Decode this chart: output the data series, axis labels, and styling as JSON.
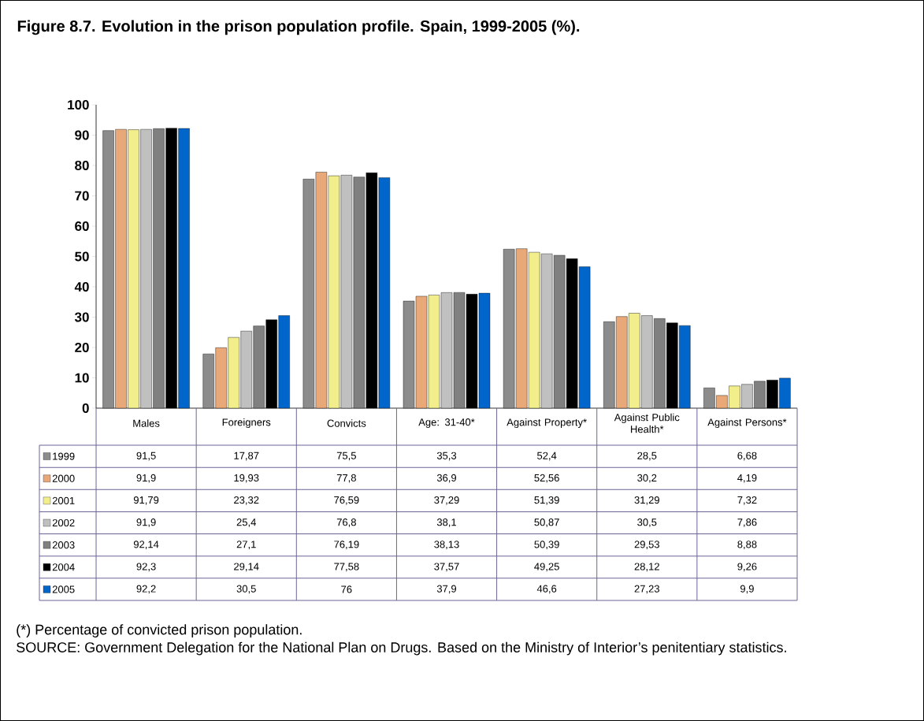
{
  "chart_data": {
    "type": "bar",
    "title": "Figure 8.7. Evolution in the prison population profile. Spain, 1999-2005 (%).",
    "categories": [
      "Males",
      "Foreigners",
      "Convicts",
      "Age: 31-40*",
      "Against Property*",
      "Against Public Health*",
      "Against Persons*"
    ],
    "series": [
      {
        "name": "1999",
        "color": "#8c8c8c",
        "values": [
          91.5,
          17.87,
          75.5,
          35.3,
          52.4,
          28.5,
          6.68
        ],
        "value_labels": [
          "91,5",
          "17,87",
          "75,5",
          "35,3",
          "52,4",
          "28,5",
          "6,68"
        ]
      },
      {
        "name": "2000",
        "color": "#e8a878",
        "values": [
          91.9,
          19.93,
          77.8,
          36.9,
          52.56,
          30.2,
          4.19
        ],
        "value_labels": [
          "91,9",
          "19,93",
          "77,8",
          "36,9",
          "52,56",
          "30,2",
          "4,19"
        ]
      },
      {
        "name": "2001",
        "color": "#f2ee8c",
        "values": [
          91.79,
          23.32,
          76.59,
          37.29,
          51.39,
          31.29,
          7.32
        ],
        "value_labels": [
          "91,79",
          "23,32",
          "76,59",
          "37,29",
          "51,39",
          "31,29",
          "7,32"
        ]
      },
      {
        "name": "2002",
        "color": "#c0c0c0",
        "values": [
          91.9,
          25.4,
          76.8,
          38.1,
          50.87,
          30.5,
          7.86
        ],
        "value_labels": [
          "91,9",
          "25,4",
          "76,8",
          "38,1",
          "50,87",
          "30,5",
          "7,86"
        ]
      },
      {
        "name": "2003",
        "color": "#808080",
        "values": [
          92.14,
          27.1,
          76.19,
          38.13,
          50.39,
          29.53,
          8.88
        ],
        "value_labels": [
          "92,14",
          "27,1",
          "76,19",
          "38,13",
          "50,39",
          "29,53",
          "8,88"
        ]
      },
      {
        "name": "2004",
        "color": "#000000",
        "values": [
          92.3,
          29.14,
          77.58,
          37.57,
          49.25,
          28.12,
          9.26
        ],
        "value_labels": [
          "92,3",
          "29,14",
          "77,58",
          "37,57",
          "49,25",
          "28,12",
          "9,26"
        ]
      },
      {
        "name": "2005",
        "color": "#0066cc",
        "values": [
          92.2,
          30.5,
          76,
          37.9,
          46.6,
          27.23,
          9.9
        ],
        "value_labels": [
          "92,2",
          "30,5",
          "76",
          "37,9",
          "46,6",
          "27,23",
          "9,9"
        ]
      }
    ],
    "ylim": [
      0,
      100
    ],
    "yticks": [
      0,
      10,
      20,
      30,
      40,
      50,
      60,
      70,
      80,
      90,
      100
    ],
    "legend": "bottom",
    "grid": false,
    "annotations": [
      "(*) Percentage of convicted prison population.",
      "SOURCE: Government Delegation for the National Plan on Drugs. Based on the Ministry of Interior’s penitentiary statistics."
    ]
  }
}
